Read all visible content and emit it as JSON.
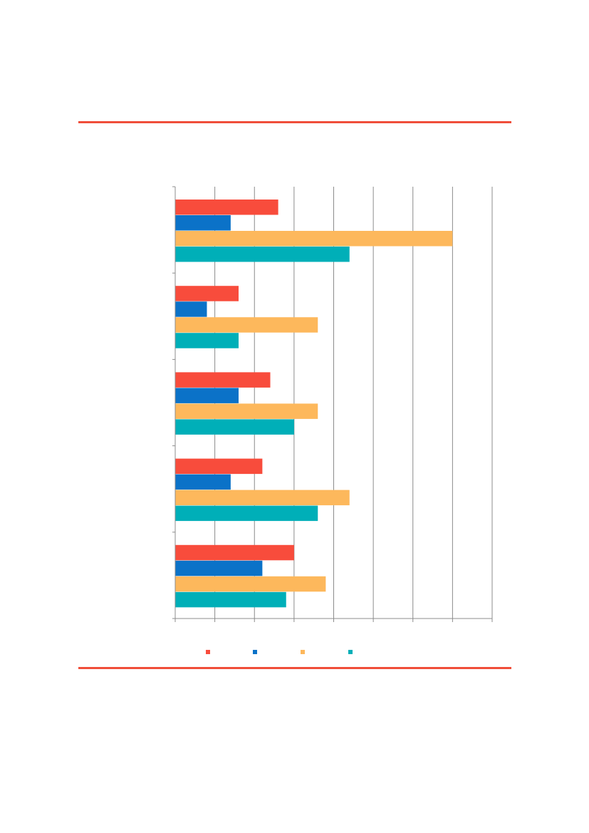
{
  "chart_data": {
    "type": "bar",
    "orientation": "horizontal",
    "grid": true,
    "legend_position": "bottom",
    "xlim": [
      0,
      8
    ],
    "x_ticks": [
      0,
      1,
      2,
      3,
      4,
      5,
      6,
      7,
      8
    ],
    "categories": [
      "",
      "",
      "",
      "",
      ""
    ],
    "series": [
      {
        "color": "#f84c3c",
        "values": [
          2.6,
          1.6,
          2.4,
          2.2,
          3.0
        ]
      },
      {
        "color": "#0b72c8",
        "values": [
          1.4,
          0.8,
          1.6,
          1.4,
          2.2
        ]
      },
      {
        "color": "#fdb85c",
        "values": [
          7.0,
          3.6,
          3.6,
          4.4,
          3.8
        ]
      },
      {
        "color": "#00afb8",
        "values": [
          4.4,
          1.6,
          3.0,
          3.6,
          2.8
        ]
      }
    ]
  },
  "colors": {
    "rule": "#f04e3a",
    "grid": "#8c8c8c",
    "axis": "#8c8c8c"
  }
}
